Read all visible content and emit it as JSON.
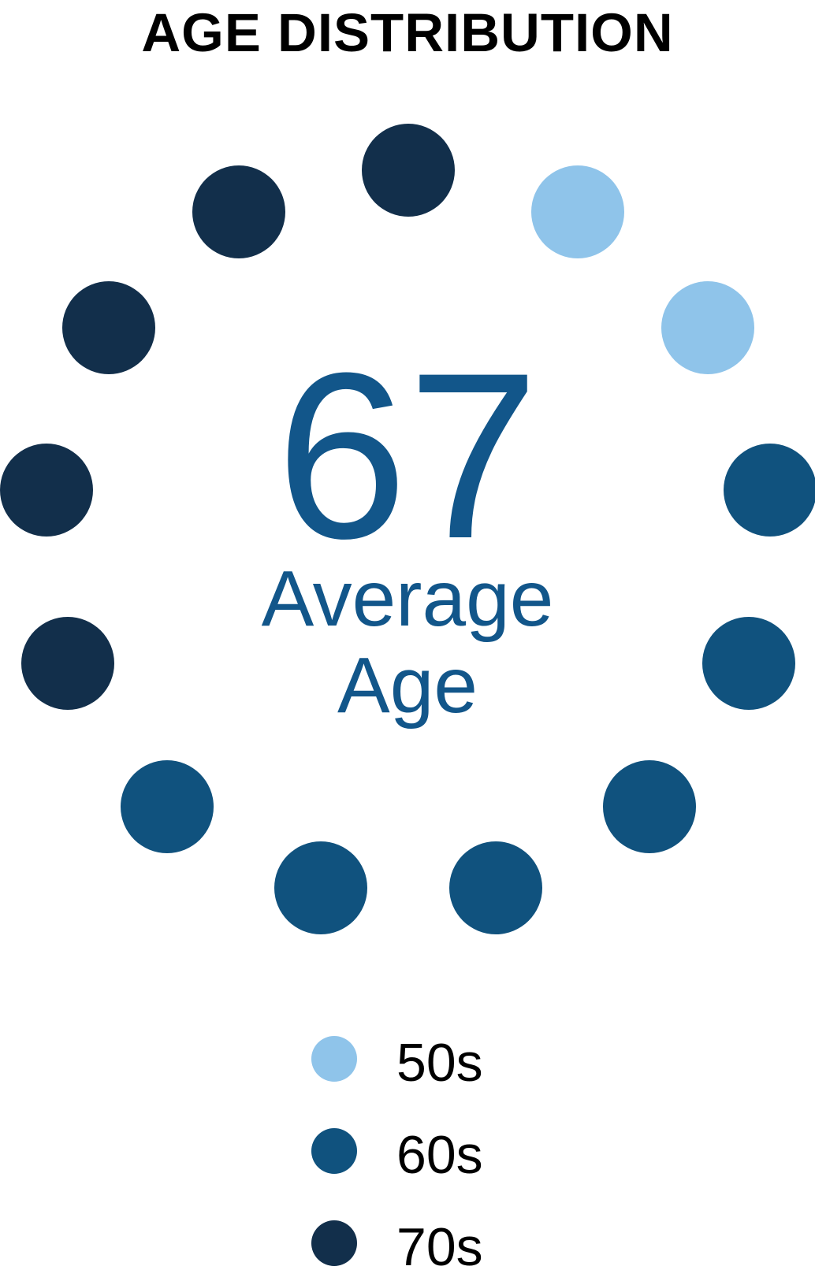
{
  "title": "AGE DISTRIBUTION",
  "center": {
    "value": "67",
    "line1": "Average",
    "line2": "Age"
  },
  "legend": {
    "items": [
      {
        "label": "50s",
        "color": "#8FC4EA"
      },
      {
        "label": "60s",
        "color": "#10527E"
      },
      {
        "label": "70s",
        "color": "#122F4B"
      }
    ]
  },
  "colors": {
    "accent_text": "#12568A",
    "title_text": "#000000",
    "background": "#FFFFFF"
  },
  "chart_data": {
    "type": "pictograph-ring",
    "title": "AGE DISTRIBUTION",
    "center_value": 67,
    "center_label": "Average Age",
    "categories": [
      "50s",
      "60s",
      "70s"
    ],
    "counts": [
      2,
      6,
      5
    ],
    "total_dots": 13,
    "colors": {
      "50s": "#8FC4EA",
      "60s": "#10527E",
      "70s": "#122F4B"
    },
    "dots_clockwise_from_top": [
      "70s",
      "50s",
      "50s",
      "60s",
      "60s",
      "60s",
      "60s",
      "60s",
      "60s",
      "70s",
      "70s",
      "70s",
      "70s"
    ],
    "legend_position": "bottom",
    "annotations": [
      "67 Average Age"
    ]
  }
}
